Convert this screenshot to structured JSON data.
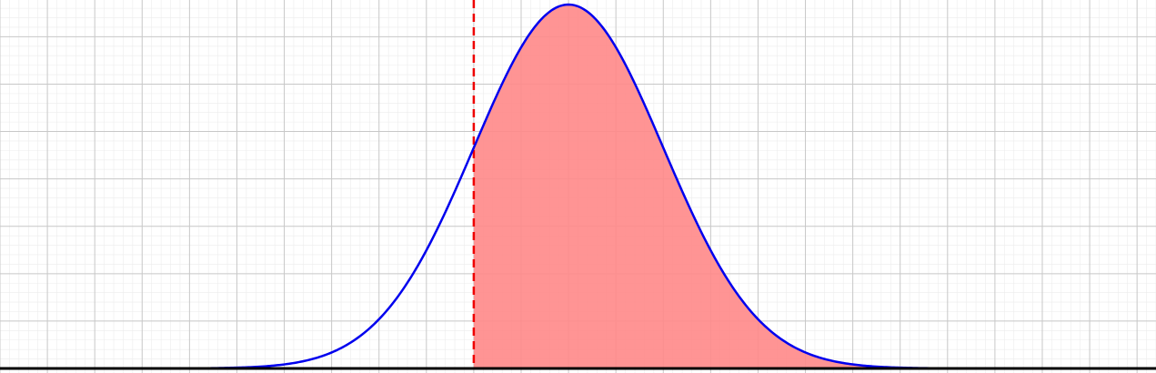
{
  "chart_data": {
    "type": "area",
    "title": "",
    "xlabel": "",
    "ylabel": "",
    "distribution": "normal",
    "mean": 0,
    "sd": 1,
    "xlim": [
      -6,
      6.2
    ],
    "ylim": [
      0,
      0.4
    ],
    "shade_from": -1,
    "shade_to": 6.2,
    "threshold_x": -1,
    "grid": true,
    "legend": "none",
    "colors": {
      "curve": "#0000ee",
      "shade": "#ff8888",
      "threshold": "#ee0000",
      "axis": "#000000",
      "grid_major": "#c8c8c8",
      "grid_minor": "#ececec"
    }
  }
}
